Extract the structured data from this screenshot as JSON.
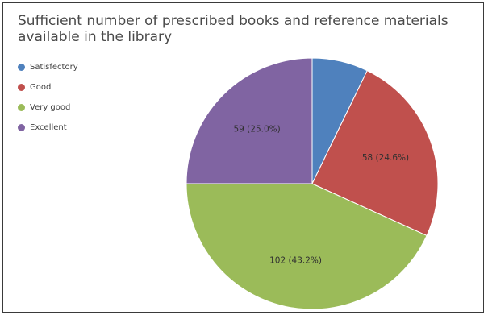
{
  "chart_data": {
    "type": "pie",
    "title": "Sufficient number of prescribed books and reference materials available in the library",
    "legend_position": "top-left",
    "categories": [
      "Satisfectory",
      "Good",
      "Very good",
      "Excellent"
    ],
    "values": [
      17,
      58,
      102,
      59
    ],
    "labels": [
      "",
      "58 (24.6%)",
      "102 (43.2%)",
      "59 (25.0%)"
    ],
    "colors": [
      "#4f81bd",
      "#c0504d",
      "#9bbb59",
      "#8064a2"
    ]
  }
}
